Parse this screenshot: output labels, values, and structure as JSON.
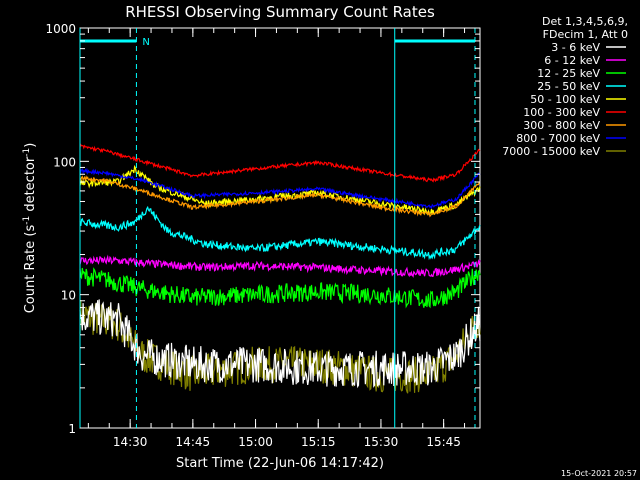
{
  "chart_data": {
    "type": "line",
    "title": "RHESSI Observing Summary Count Rates",
    "xlabel": "Start Time (22-Jun-06 14:17:42)",
    "ylabel_main": "Count Rate (s",
    "ylabel_sup1": "-1",
    "ylabel_mid": " detector",
    "ylabel_sup2": "-1",
    "ylabel_end": ")",
    "y_scale": "log",
    "ylim": [
      1,
      1000
    ],
    "xlim_minutes": [
      14.3,
      15.895
    ],
    "x_ticks": [
      {
        "value": 14.5,
        "label": "14:30"
      },
      {
        "value": 14.75,
        "label": "14:45"
      },
      {
        "value": 15.0,
        "label": "15:00"
      },
      {
        "value": 15.25,
        "label": "15:15"
      },
      {
        "value": 15.5,
        "label": "15:30"
      },
      {
        "value": 15.75,
        "label": "15:45"
      }
    ],
    "y_ticks": [
      {
        "value": 1,
        "label": "1"
      },
      {
        "value": 10,
        "label": "10"
      },
      {
        "value": 100,
        "label": "100"
      },
      {
        "value": 1000,
        "label": "1000"
      }
    ],
    "legend_header": [
      "Det 1,3,4,5,6,9,",
      "FDecim 1, Att 0"
    ],
    "series": [
      {
        "name": "3 - 6 keV",
        "color": "#ffffff",
        "x": [
          14.3,
          14.45,
          14.55,
          14.75,
          15.0,
          15.25,
          15.5,
          15.7,
          15.8,
          15.89
        ],
        "y": [
          7,
          6.5,
          3.5,
          3,
          3,
          2.8,
          2.8,
          2.8,
          3.5,
          6
        ]
      },
      {
        "name": "6 - 12 keV",
        "color": "#ff00ff",
        "x": [
          14.3,
          14.45,
          14.6,
          14.8,
          15.0,
          15.25,
          15.5,
          15.7,
          15.8,
          15.89
        ],
        "y": [
          18,
          18,
          17,
          16,
          16.5,
          16,
          15,
          14.5,
          15.5,
          17
        ]
      },
      {
        "name": "12 - 25 keV",
        "color": "#00ff00",
        "x": [
          14.3,
          14.4,
          14.55,
          14.75,
          15.0,
          15.25,
          15.5,
          15.7,
          15.8,
          15.89
        ],
        "y": [
          14,
          13,
          11,
          9.5,
          10,
          10.5,
          10,
          9,
          10.5,
          15
        ]
      },
      {
        "name": "25 - 50 keV",
        "color": "#00ffff",
        "x": [
          14.3,
          14.45,
          14.52,
          14.57,
          14.65,
          14.8,
          15.0,
          15.25,
          15.5,
          15.7,
          15.8,
          15.89
        ],
        "y": [
          35,
          32,
          35,
          45,
          30,
          24,
          22,
          25,
          22,
          20,
          22,
          32
        ]
      },
      {
        "name": "50 - 100 keV",
        "color": "#ffff00",
        "x": [
          14.3,
          14.45,
          14.52,
          14.6,
          14.8,
          15.0,
          15.25,
          15.5,
          15.7,
          15.8,
          15.89
        ],
        "y": [
          68,
          70,
          88,
          65,
          48,
          52,
          58,
          48,
          42,
          47,
          62
        ]
      },
      {
        "name": "100 - 300 keV",
        "color": "#ff0000",
        "x": [
          14.3,
          14.4,
          14.55,
          14.75,
          15.0,
          15.25,
          15.5,
          15.7,
          15.8,
          15.89
        ],
        "y": [
          130,
          120,
          100,
          78,
          88,
          98,
          82,
          72,
          80,
          120
        ]
      },
      {
        "name": "300 - 800 keV",
        "color": "#ff9900",
        "x": [
          14.3,
          14.4,
          14.55,
          14.75,
          15.0,
          15.25,
          15.5,
          15.7,
          15.8,
          15.89
        ],
        "y": [
          75,
          72,
          60,
          45,
          50,
          56,
          45,
          40,
          46,
          68
        ]
      },
      {
        "name": "800 - 7000 keV",
        "color": "#0000ff",
        "x": [
          14.3,
          14.4,
          14.55,
          14.75,
          15.0,
          15.25,
          15.5,
          15.7,
          15.8,
          15.89
        ],
        "y": [
          85,
          82,
          72,
          55,
          58,
          62,
          52,
          46,
          52,
          80
        ]
      },
      {
        "name": "7000 - 15000 keV",
        "color": "#808000",
        "x": [
          14.3,
          14.45,
          14.55,
          14.75,
          15.0,
          15.25,
          15.5,
          15.7,
          15.8,
          15.89
        ],
        "y": [
          7,
          6,
          3.5,
          2.5,
          3,
          3,
          2.5,
          2.5,
          3.5,
          6.5
        ]
      }
    ],
    "flag_label": "N",
    "flag_color": "#00ffff",
    "vertical_markers": [
      {
        "x": 14.3,
        "style": "solid"
      },
      {
        "x": 14.525,
        "style": "dashed"
      },
      {
        "x": 15.555,
        "style": "solid"
      },
      {
        "x": 15.875,
        "style": "dashed"
      }
    ],
    "flag_bars": [
      [
        14.3,
        14.525
      ],
      [
        15.555,
        15.875
      ]
    ],
    "grid": false,
    "legend_position": "top-right"
  },
  "footer": {
    "timestamp": "15-Oct-2021 20:57"
  }
}
